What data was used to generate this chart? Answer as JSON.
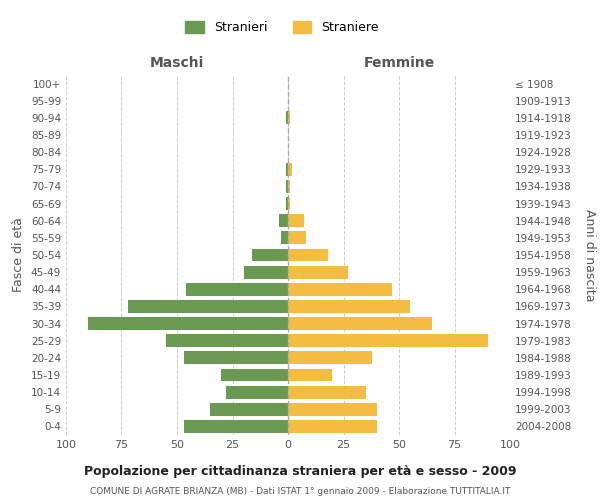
{
  "age_groups": [
    "0-4",
    "5-9",
    "10-14",
    "15-19",
    "20-24",
    "25-29",
    "30-34",
    "35-39",
    "40-44",
    "45-49",
    "50-54",
    "55-59",
    "60-64",
    "65-69",
    "70-74",
    "75-79",
    "80-84",
    "85-89",
    "90-94",
    "95-99",
    "100+"
  ],
  "birth_years": [
    "2004-2008",
    "1999-2003",
    "1994-1998",
    "1989-1993",
    "1984-1988",
    "1979-1983",
    "1974-1978",
    "1969-1973",
    "1964-1968",
    "1959-1963",
    "1954-1958",
    "1949-1953",
    "1944-1948",
    "1939-1943",
    "1934-1938",
    "1929-1933",
    "1924-1928",
    "1919-1923",
    "1914-1918",
    "1909-1913",
    "≤ 1908"
  ],
  "maschi": [
    47,
    35,
    28,
    30,
    47,
    55,
    90,
    72,
    46,
    20,
    16,
    3,
    4,
    1,
    1,
    1,
    0,
    0,
    1,
    0,
    0
  ],
  "femmine": [
    40,
    40,
    35,
    20,
    38,
    90,
    65,
    55,
    47,
    27,
    18,
    8,
    7,
    1,
    1,
    2,
    0,
    0,
    1,
    0,
    0
  ],
  "color_maschi": "#6a9a52",
  "color_femmine": "#f5bc42",
  "title": "Popolazione per cittadinanza straniera per età e sesso - 2009",
  "subtitle": "COMUNE DI AGRATE BRIANZA (MB) - Dati ISTAT 1° gennaio 2009 - Elaborazione TUTTITALIA.IT",
  "xlabel_left": "Maschi",
  "xlabel_right": "Femmine",
  "ylabel_left": "Fasce di età",
  "ylabel_right": "Anni di nascita",
  "legend_maschi": "Stranieri",
  "legend_femmine": "Straniere",
  "xlim": 100,
  "bg_color": "#ffffff",
  "grid_color": "#cccccc"
}
